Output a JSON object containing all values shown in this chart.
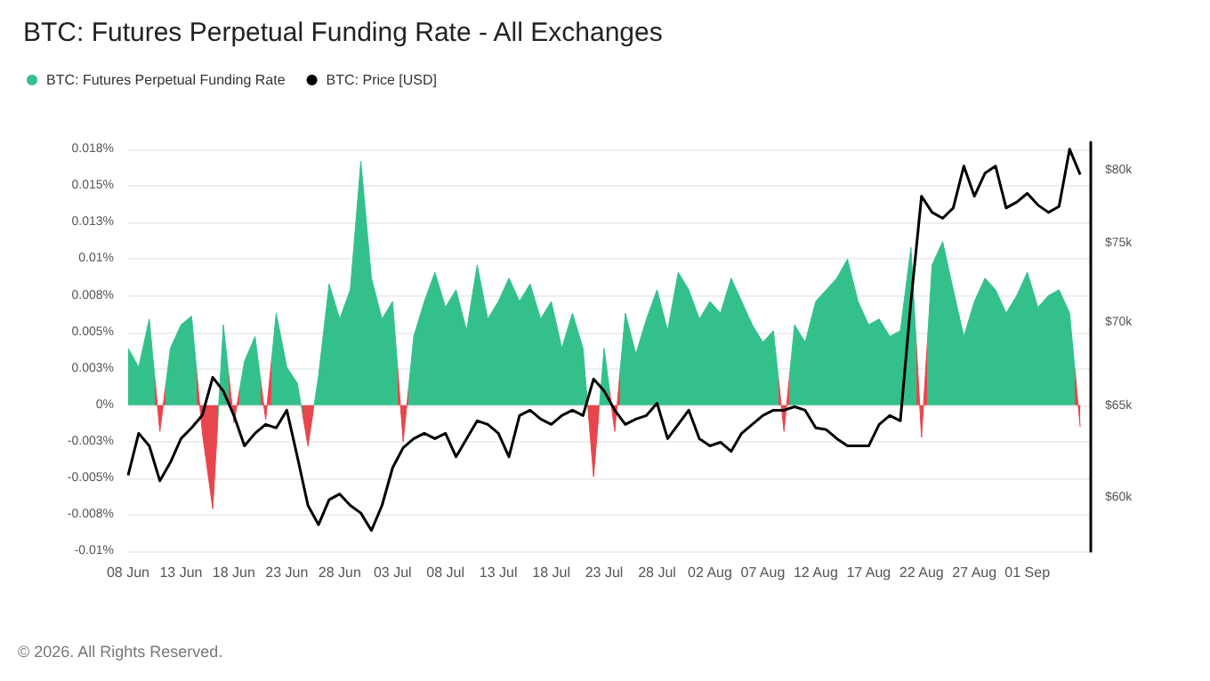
{
  "chart_data": {
    "type": "area",
    "title": "BTC: Futures Perpetual Funding Rate - All Exchanges",
    "x": [
      "--06-08",
      "--06-09",
      "--06-10",
      "--06-11",
      "--06-12",
      "--06-13",
      "--06-14",
      "--06-15",
      "--06-16",
      "--06-17",
      "--06-18",
      "--06-19",
      "--06-20",
      "--06-21",
      "--06-22",
      "--06-23",
      "--06-24",
      "--06-25",
      "--06-26",
      "--06-27",
      "--06-28",
      "--06-29",
      "--06-30",
      "--07-01",
      "--07-02",
      "--07-03",
      "--07-04",
      "--07-05",
      "--07-06",
      "--07-07",
      "--07-08",
      "--07-09",
      "--07-10",
      "--07-11",
      "--07-12",
      "--07-13",
      "--07-14",
      "--07-15",
      "--07-16",
      "--07-17",
      "--07-18",
      "--07-19",
      "--07-20",
      "--07-21",
      "--07-22",
      "--07-23",
      "--07-24",
      "--07-25",
      "--07-26",
      "--07-27",
      "--07-28",
      "--07-29",
      "--07-30",
      "--07-31",
      "--08-01",
      "--08-02",
      "--08-03",
      "--08-04",
      "--08-05",
      "--08-06",
      "--08-07",
      "--08-08",
      "--08-09",
      "--08-10",
      "--08-11",
      "--08-12",
      "--08-13",
      "--08-14",
      "--08-15",
      "--08-16",
      "--08-17",
      "--08-18",
      "--08-19",
      "--08-20",
      "--08-21",
      "--08-22",
      "--08-23",
      "--08-24",
      "--08-25",
      "--08-26",
      "--08-27",
      "--08-28",
      "--08-29",
      "--08-30",
      "--08-31",
      "--09-01",
      "--09-02",
      "--09-03",
      "--09-04",
      "--09-05",
      "--09-06"
    ],
    "series": [
      {
        "name": "BTC: Futures Perpetual Funding Rate",
        "values": [
          0.0039,
          0.0026,
          0.0059,
          -0.0018,
          0.0039,
          0.0055,
          0.0061,
          -0.0018,
          -0.0071,
          0.0055,
          -0.0012,
          0.003,
          0.0047,
          -0.001,
          0.0063,
          0.0026,
          0.0015,
          -0.0028,
          0.002,
          0.0083,
          0.0059,
          0.0079,
          0.0167,
          0.0087,
          0.0059,
          0.0071,
          -0.0025,
          0.0047,
          0.0071,
          0.0091,
          0.0067,
          0.0079,
          0.0051,
          0.0096,
          0.0059,
          0.0071,
          0.0087,
          0.0071,
          0.0083,
          0.0059,
          0.0071,
          0.0039,
          0.0063,
          0.0039,
          -0.0049,
          0.0039,
          -0.0018,
          0.0063,
          0.0035,
          0.0059,
          0.0079,
          0.0051,
          0.0091,
          0.0079,
          0.0059,
          0.0071,
          0.0063,
          0.0087,
          0.0071,
          0.0055,
          0.0043,
          0.0051,
          -0.0018,
          0.0055,
          0.0043,
          0.0071,
          0.0079,
          0.0087,
          0.01,
          0.0071,
          0.0055,
          0.0059,
          0.0047,
          0.0051,
          0.0108,
          -0.0022,
          0.0096,
          0.0112,
          0.0079,
          0.0047,
          0.0071,
          0.0087,
          0.0079,
          0.0063,
          0.0075,
          0.0091,
          0.0067,
          0.0075,
          0.0079,
          0.0063,
          -0.0015
        ],
        "colors": [
          "#34c08b",
          "#34c08b",
          "#34c08b",
          "#e8454d",
          "#34c08b",
          "#34c08b",
          "#34c08b",
          "#e8454d",
          "#e8454d",
          "#34c08b",
          "#e8454d",
          "#34c08b",
          "#34c08b",
          "#e8454d",
          "#34c08b",
          "#34c08b",
          "#34c08b",
          "#e8454d",
          "#34c08b",
          "#34c08b",
          "#34c08b",
          "#34c08b",
          "#34c08b",
          "#34c08b",
          "#34c08b",
          "#34c08b",
          "#e8454d",
          "#34c08b",
          "#34c08b",
          "#34c08b",
          "#34c08b",
          "#34c08b",
          "#34c08b",
          "#34c08b",
          "#34c08b",
          "#34c08b",
          "#34c08b",
          "#34c08b",
          "#34c08b",
          "#34c08b",
          "#34c08b",
          "#34c08b",
          "#34c08b",
          "#34c08b",
          "#e8454d",
          "#34c08b",
          "#e8454d",
          "#34c08b",
          "#34c08b",
          "#34c08b",
          "#34c08b",
          "#34c08b",
          "#34c08b",
          "#34c08b",
          "#34c08b",
          "#34c08b",
          "#34c08b",
          "#34c08b",
          "#34c08b",
          "#34c08b",
          "#34c08b",
          "#34c08b",
          "#e8454d",
          "#34c08b",
          "#34c08b",
          "#34c08b",
          "#34c08b",
          "#34c08b",
          "#34c08b",
          "#34c08b",
          "#34c08b",
          "#34c08b",
          "#34c08b",
          "#34c08b",
          "#34c08b",
          "#e8454d",
          "#34c08b",
          "#34c08b",
          "#34c08b",
          "#34c08b",
          "#34c08b",
          "#34c08b",
          "#34c08b",
          "#34c08b",
          "#34c08b",
          "#34c08b",
          "#34c08b",
          "#34c08b",
          "#34c08b",
          "#34c08b",
          "#e8454d"
        ]
      },
      {
        "name": "BTC: Price [USD]",
        "type": "line",
        "axis": "y2",
        "color": "#000000",
        "values": [
          61200,
          63500,
          62800,
          60900,
          61900,
          63200,
          63800,
          64500,
          66700,
          65900,
          64500,
          62800,
          63500,
          64000,
          63800,
          64800,
          62200,
          59600,
          58600,
          59900,
          60200,
          59600,
          59200,
          58300,
          59600,
          61600,
          62700,
          63200,
          63500,
          63200,
          63500,
          62200,
          63200,
          64200,
          64000,
          63500,
          62200,
          64500,
          64800,
          64300,
          64000,
          64500,
          64800,
          64500,
          66600,
          65900,
          64800,
          64000,
          64300,
          64500,
          65200,
          63200,
          64000,
          64800,
          63200,
          62800,
          63000,
          62500,
          63500,
          64000,
          64500,
          64800,
          64800,
          65000,
          64800,
          63800,
          63700,
          63200,
          62800,
          62800,
          62800,
          64000,
          64500,
          64200,
          71300,
          78200,
          77100,
          76700,
          77400,
          80300,
          78200,
          79800,
          80300,
          77400,
          77800,
          78400,
          77600,
          77100,
          77500,
          81500,
          79700
        ]
      }
    ],
    "xlim": [
      "--06-08",
      "--09-07"
    ],
    "xticks": [
      {
        "value": "--06-08",
        "label": "08 Jun"
      },
      {
        "value": "--06-13",
        "label": "13 Jun"
      },
      {
        "value": "--06-18",
        "label": "18 Jun"
      },
      {
        "value": "--06-23",
        "label": "23 Jun"
      },
      {
        "value": "--06-28",
        "label": "28 Jun"
      },
      {
        "value": "--07-03",
        "label": "03 Jul"
      },
      {
        "value": "--07-08",
        "label": "08 Jul"
      },
      {
        "value": "--07-13",
        "label": "13 Jul"
      },
      {
        "value": "--07-18",
        "label": "18 Jul"
      },
      {
        "value": "--07-23",
        "label": "23 Jul"
      },
      {
        "value": "--07-28",
        "label": "28 Jul"
      },
      {
        "value": "--08-02",
        "label": "02 Aug"
      },
      {
        "value": "--08-07",
        "label": "07 Aug"
      },
      {
        "value": "--08-12",
        "label": "12 Aug"
      },
      {
        "value": "--08-17",
        "label": "17 Aug"
      },
      {
        "value": "--08-22",
        "label": "22 Aug"
      },
      {
        "value": "--08-27",
        "label": "27 Aug"
      },
      {
        "value": "--09-01",
        "label": "01 Sep"
      }
    ],
    "ylim": [
      -0.01,
      0.018
    ],
    "yticks": [
      {
        "value": -0.01,
        "label": "-0.01%"
      },
      {
        "value": -0.0075,
        "label": "-0.008%"
      },
      {
        "value": -0.005,
        "label": "-0.005%"
      },
      {
        "value": -0.0025,
        "label": "-0.003%"
      },
      {
        "value": 0,
        "label": "0%"
      },
      {
        "value": 0.0025,
        "label": "0.003%"
      },
      {
        "value": 0.005,
        "label": "0.005%"
      },
      {
        "value": 0.0075,
        "label": "0.008%"
      },
      {
        "value": 0.01,
        "label": "0.01%"
      },
      {
        "value": 0.0125,
        "label": "0.013%"
      },
      {
        "value": 0.015,
        "label": "0.015%"
      },
      {
        "value": 0.0175,
        "label": "0.018%"
      }
    ],
    "y2lim": [
      57250,
      82000
    ],
    "y2ticks": [
      {
        "value": 60000,
        "label": "$60k"
      },
      {
        "value": 65000,
        "label": "$65k"
      },
      {
        "value": 70000,
        "label": "$70k"
      },
      {
        "value": 75000,
        "label": "$75k"
      },
      {
        "value": 80000,
        "label": "$80k"
      }
    ],
    "log": "y2",
    "grid": "y",
    "legend": "top left",
    "marker": "none",
    "annotations": [
      "© 2026. All Rights Reserved."
    ]
  }
}
